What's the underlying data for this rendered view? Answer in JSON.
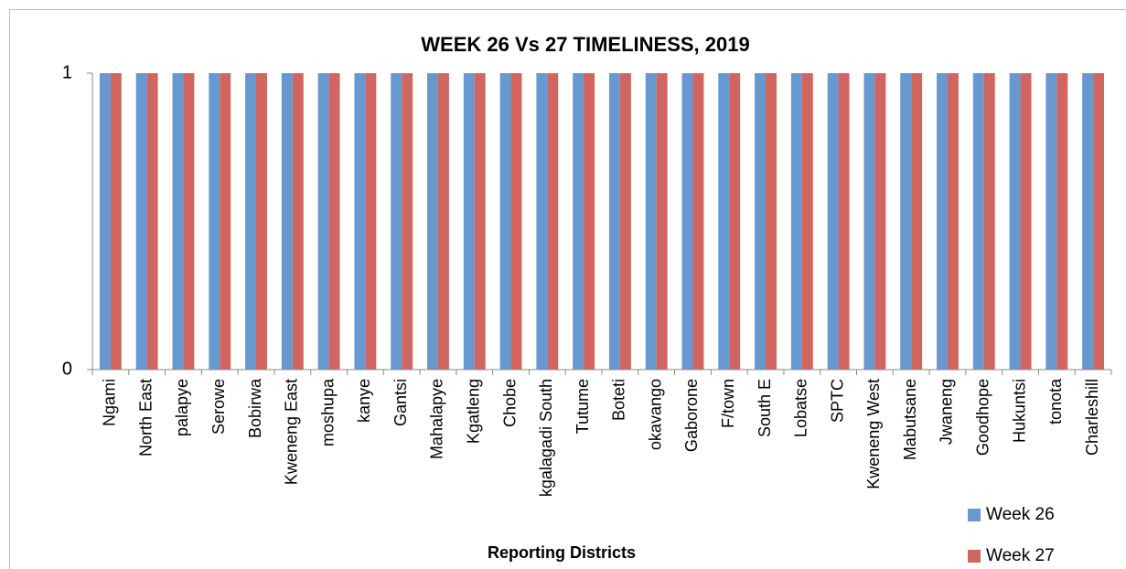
{
  "chart_data": {
    "type": "bar",
    "title": "WEEK 26 Vs 27 TIMELINESS, 2019",
    "x_label": "Reporting Districts",
    "categories": [
      "Ngami",
      "North East",
      "palapye",
      "Serowe",
      "Bobirwa",
      "Kweneng East",
      "moshupa",
      "kanye",
      "Gantsi",
      "Mahalapye",
      "Kgatleng",
      "Chobe",
      "kgalagadi South",
      "Tutume",
      "Boteti",
      "okavango",
      "Gaborone",
      "F/town",
      "South E",
      "Lobatse",
      "SPTC",
      "Kweneng West",
      "Mabutsane",
      "Jwaneng",
      "Goodhope",
      "Hukuntsi",
      "tonota",
      "Charleshill"
    ],
    "series": [
      {
        "name": "Week 26",
        "color": "#6798d0",
        "values": [
          1,
          1,
          1,
          1,
          1,
          1,
          1,
          1,
          1,
          1,
          1,
          1,
          1,
          1,
          1,
          1,
          1,
          1,
          1,
          1,
          1,
          1,
          1,
          1,
          1,
          1,
          1,
          1
        ]
      },
      {
        "name": "Week 27",
        "color": "#d16560",
        "values": [
          1,
          1,
          1,
          1,
          1,
          1,
          1,
          1,
          1,
          1,
          1,
          1,
          1,
          1,
          1,
          1,
          1,
          1,
          1,
          1,
          1,
          1,
          1,
          1,
          1,
          1,
          1,
          1
        ]
      }
    ],
    "ylim": [
      0,
      1
    ],
    "yticks": [
      0,
      1
    ],
    "grid": false,
    "legend": "bottom-right"
  }
}
